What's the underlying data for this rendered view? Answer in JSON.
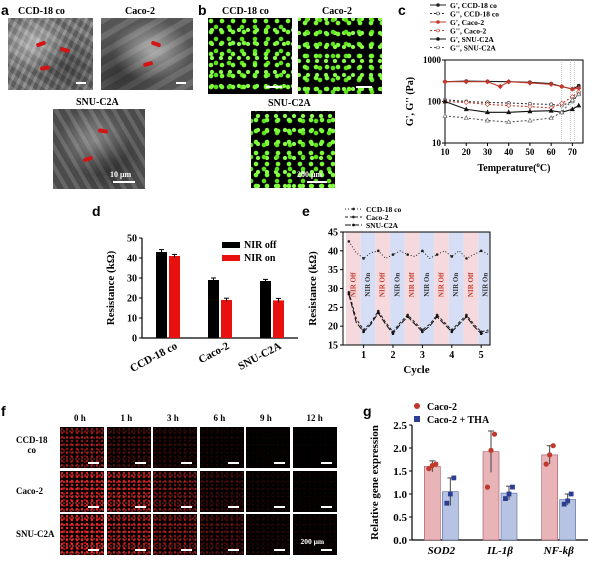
{
  "panels": {
    "a": "a",
    "b": "b",
    "c": "c",
    "d": "d",
    "e": "e",
    "f": "f",
    "g": "g"
  },
  "panel_a": {
    "labels": [
      "CCD-18 co",
      "Caco-2",
      "SNU-C2A"
    ],
    "scale_text": "10 μm"
  },
  "panel_b": {
    "labels": [
      "CCD-18 co",
      "Caco-2",
      "SNU-C2A"
    ],
    "scale_text": "200 μm"
  },
  "panel_f": {
    "time_labels": [
      "0 h",
      "1 h",
      "3 h",
      "6 h",
      "9 h",
      "12 h"
    ],
    "row_labels": [
      "CCD-18\nco",
      "Caco-2",
      "SNU-C2A"
    ],
    "scale_text": "200 μm",
    "red_levels": [
      [
        0.55,
        0.25,
        0.15,
        0.07,
        0.03,
        0.02
      ],
      [
        0.85,
        0.75,
        0.45,
        0.2,
        0.08,
        0.04
      ],
      [
        0.9,
        0.7,
        0.5,
        0.28,
        0.1,
        0.06
      ]
    ]
  },
  "chart_data": [
    {
      "panel": "c",
      "type": "line",
      "xlabel": "Temperature(",
      "xlabel_unit": "o",
      "xlabel_end": "C)",
      "ylabel": "G', G'' (Pa)",
      "yscale": "log",
      "xlim": [
        10,
        75
      ],
      "ylim": [
        10,
        1000
      ],
      "xticks": [
        10,
        20,
        30,
        40,
        50,
        60,
        70
      ],
      "yticks": [
        {
          "v": 10,
          "t": "10"
        },
        {
          "v": 100,
          "t": "100"
        },
        {
          "v": 1000,
          "t": "1000"
        }
      ],
      "legend": [
        "G', CCD-18 co",
        "G'', CCD-18 co",
        "G', Caco-2",
        "G'', Caco-2",
        "G', SNU-C2A",
        "G'', SNU-C2A"
      ],
      "series": [
        {
          "name": "G', CCD-18 co",
          "color": "#222222",
          "dash": "",
          "marker": "circle",
          "x": [
            10,
            20,
            30,
            40,
            50,
            60,
            65,
            70,
            73
          ],
          "y": [
            300,
            310,
            305,
            300,
            290,
            270,
            230,
            200,
            240
          ]
        },
        {
          "name": "G'', CCD-18 co",
          "color": "#333333",
          "dash": "2,2",
          "marker": "circle",
          "x": [
            10,
            20,
            30,
            40,
            50,
            60,
            65,
            70,
            73
          ],
          "y": [
            110,
            100,
            95,
            92,
            88,
            85,
            80,
            100,
            150
          ]
        },
        {
          "name": "G', Caco-2",
          "color": "#c0392b",
          "dash": "",
          "marker": "diamond",
          "x": [
            10,
            20,
            30,
            36,
            40,
            50,
            60,
            65,
            70,
            73
          ],
          "y": [
            300,
            300,
            300,
            230,
            300,
            280,
            260,
            230,
            200,
            210
          ]
        },
        {
          "name": "G'', Caco-2",
          "color": "#c0392b",
          "dash": "2,2",
          "marker": "diamond",
          "x": [
            10,
            20,
            30,
            40,
            50,
            60,
            65,
            70,
            73
          ],
          "y": [
            100,
            95,
            85,
            80,
            75,
            70,
            90,
            130,
            170
          ]
        },
        {
          "name": "G', SNU-C2A",
          "color": "#111111",
          "dash": "",
          "marker": "triangle",
          "x": [
            10,
            20,
            30,
            40,
            50,
            60,
            65,
            70,
            73
          ],
          "y": [
            100,
            65,
            55,
            55,
            58,
            60,
            55,
            65,
            80
          ]
        },
        {
          "name": "G'', SNU-C2A",
          "color": "#555555",
          "dash": "2,2",
          "marker": "triangle",
          "x": [
            10,
            20,
            30,
            40,
            50,
            60,
            65,
            70,
            73
          ],
          "y": [
            45,
            40,
            35,
            32,
            35,
            40,
            55,
            110,
            150
          ]
        }
      ]
    },
    {
      "panel": "d",
      "type": "bar",
      "categories": [
        "CCD-18 co",
        "Caco-2",
        "SNU-C2A"
      ],
      "ylabel": "Resistance (kΩ)",
      "ylim": [
        0,
        50
      ],
      "yticks": [
        0,
        10,
        20,
        30,
        40,
        50
      ],
      "series": [
        {
          "name": "NIR off",
          "color": "#000000",
          "values": [
            43,
            29,
            28.5
          ],
          "err": [
            1.2,
            1,
            0.8
          ]
        },
        {
          "name": "NIR on",
          "color": "#e8110f",
          "values": [
            41,
            19,
            18.8
          ],
          "err": [
            0.8,
            0.9,
            1
          ]
        }
      ]
    },
    {
      "panel": "e",
      "type": "line",
      "xlabel": "Cycle",
      "ylabel": "Resistance (kΩ)",
      "xlim": [
        0.3,
        5.3
      ],
      "ylim": [
        15,
        45
      ],
      "xticks": [
        1,
        2,
        3,
        4,
        5
      ],
      "yticks": [
        15,
        20,
        25,
        30,
        35,
        40,
        45
      ],
      "band_labels": [
        "NIR Off",
        "NIR On"
      ],
      "legend": [
        "CCD-18 co",
        "Caco-2",
        "SNU-C2A"
      ],
      "series": [
        {
          "name": "CCD-18 co",
          "color": "#222222",
          "dash": "1,2",
          "x": [
            0.5,
            0.75,
            1,
            1.25,
            1.5,
            1.75,
            2,
            2.25,
            2.5,
            2.75,
            3,
            3.25,
            3.5,
            3.75,
            4,
            4.25,
            4.5,
            4.75,
            5,
            5.25
          ],
          "y": [
            42.5,
            39.5,
            38,
            39.5,
            40,
            38,
            39,
            40,
            39,
            38.5,
            40,
            38,
            39,
            40,
            38.5,
            40,
            38,
            39,
            40,
            39
          ]
        },
        {
          "name": "Caco-2",
          "color": "#222222",
          "dash": "3,2",
          "x": [
            0.5,
            0.75,
            1,
            1.25,
            1.5,
            1.75,
            2,
            2.25,
            2.5,
            2.75,
            3,
            3.25,
            3.5,
            3.75,
            4,
            4.25,
            4.5,
            4.75,
            5,
            5.25
          ],
          "y": [
            29,
            22,
            19,
            21,
            24,
            21,
            18.5,
            21,
            23,
            21,
            19,
            20.5,
            23,
            21,
            19,
            21,
            23,
            20.5,
            18.5,
            19
          ]
        },
        {
          "name": "SNU-C2A",
          "color": "#111111",
          "dash": "6,2",
          "x": [
            0.5,
            0.75,
            1,
            1.25,
            1.5,
            1.75,
            2,
            2.25,
            2.5,
            2.75,
            3,
            3.25,
            3.5,
            3.75,
            4,
            4.25,
            4.5,
            4.75,
            5,
            5.25
          ],
          "y": [
            28.5,
            21,
            18.5,
            20.5,
            23.5,
            20.5,
            18,
            20.5,
            22.5,
            20.5,
            18.5,
            20,
            22.5,
            20.5,
            18.5,
            20.5,
            22.5,
            20,
            18,
            18.5
          ]
        }
      ]
    },
    {
      "panel": "g",
      "type": "bar",
      "categories": [
        "SOD2",
        "IL-1β",
        "NF-kβ"
      ],
      "ylabel": "Relative gene expression",
      "ylim": [
        0,
        2.5
      ],
      "yticks": [
        0.0,
        0.5,
        1.0,
        1.5,
        2.0,
        2.5
      ],
      "legend": [
        "Caco-2",
        "Caco-2 + THA"
      ],
      "series": [
        {
          "name": "Caco-2",
          "color": "#e8b4b8",
          "edge": "#a05560",
          "dot": "#c0392b",
          "values": [
            1.6,
            1.92,
            1.85
          ],
          "err": [
            0.12,
            0.45,
            0.2
          ],
          "points": [
            [
              1.55,
              1.62,
              1.65
            ],
            [
              1.15,
              1.95,
              2.3
            ],
            [
              1.65,
              1.85,
              2.05
            ]
          ]
        },
        {
          "name": "Caco-2 + THA",
          "color": "#b7c3e3",
          "edge": "#556699",
          "dot": "#2c3e8f",
          "values": [
            1.05,
            1.02,
            0.88
          ],
          "err": [
            0.3,
            0.15,
            0.12
          ],
          "points": [
            [
              0.8,
              1.0,
              1.35
            ],
            [
              0.9,
              1.0,
              1.15
            ],
            [
              0.78,
              0.85,
              1.0
            ]
          ]
        }
      ]
    }
  ]
}
